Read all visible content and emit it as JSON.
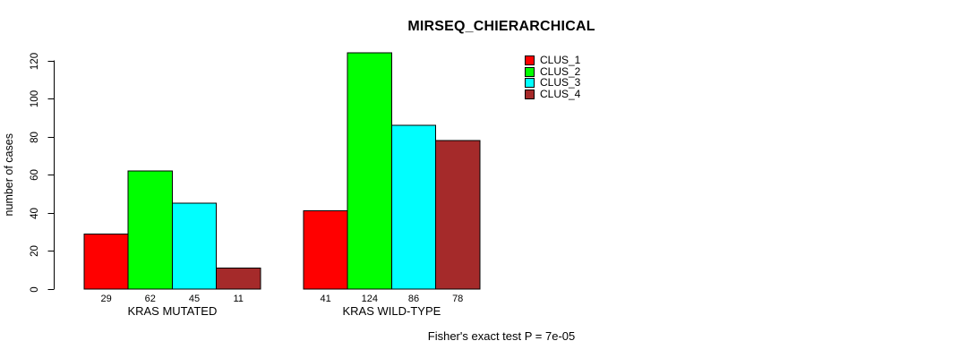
{
  "chart_data": {
    "type": "bar",
    "title": "MIRSEQ_CHIERARCHICAL",
    "ylabel": "number of cases",
    "xlabel": "",
    "yticks": [
      0,
      20,
      40,
      60,
      80,
      100,
      120
    ],
    "ylim": [
      0,
      124
    ],
    "grid": false,
    "legend_position": "top-right-of-plot",
    "categories": [
      "KRAS MUTATED",
      "KRAS WILD-TYPE"
    ],
    "series": [
      {
        "name": "CLUS_1",
        "color": "#FF0000",
        "values": [
          29,
          41
        ]
      },
      {
        "name": "CLUS_2",
        "color": "#00FF00",
        "values": [
          62,
          124
        ]
      },
      {
        "name": "CLUS_3",
        "color": "#00FFFF",
        "values": [
          45,
          86
        ]
      },
      {
        "name": "CLUS_4",
        "color": "#A52A2A",
        "values": [
          11,
          78
        ]
      }
    ],
    "bar_value_labels": [
      [
        29,
        62,
        45,
        11
      ],
      [
        41,
        124,
        86,
        78
      ]
    ],
    "annotation": "Fisher's exact test P = 7e-05",
    "axis_color": "#000000",
    "bar_border_color": "#000000"
  }
}
